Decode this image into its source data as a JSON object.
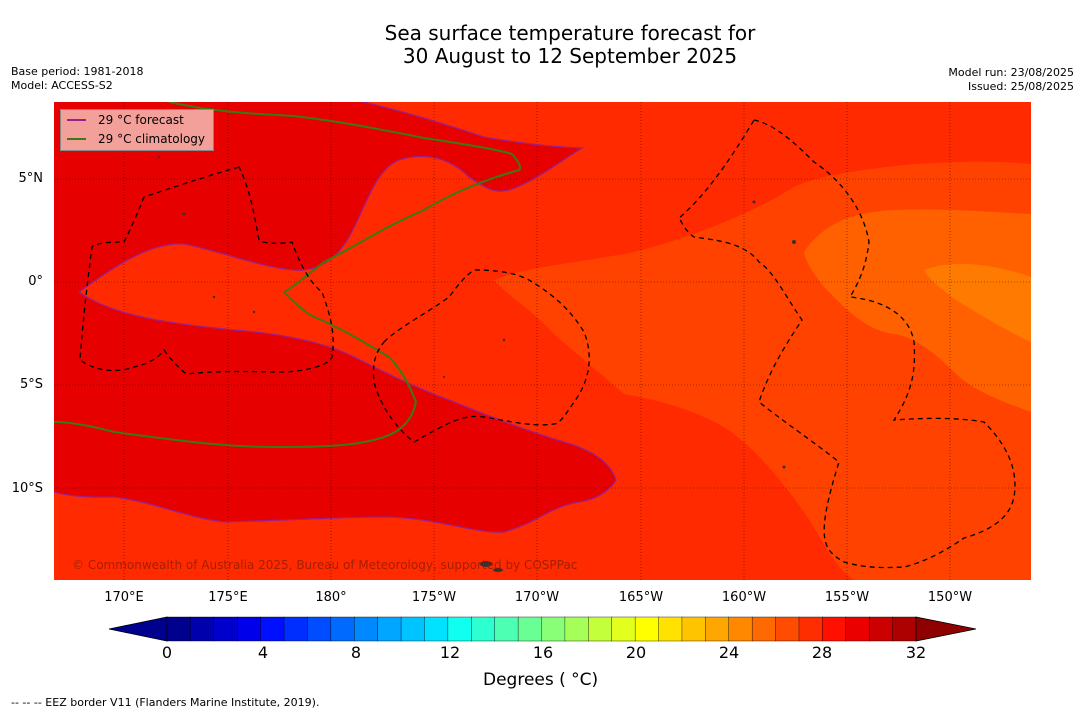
{
  "title": {
    "line1": "Sea surface temperature forecast for",
    "line2": "30 August to 12 September 2025"
  },
  "info_left": {
    "base_period": "Base period: 1981-2018",
    "model": "Model: ACCESS-S2"
  },
  "info_right": {
    "model_run": "Model run: 23/08/2025",
    "issued": "Issued: 25/08/2025"
  },
  "map": {
    "legend": [
      {
        "label": "29 °C  forecast",
        "color": "#9b1f8e"
      },
      {
        "label": "29 °C  climatology",
        "color": "#3a7a12"
      }
    ],
    "copyright": "© Commonwealth of Australia 2025, Bureau of Meteorology, supported by COSPPac",
    "lat_labels": [
      "5°N",
      "0°",
      "5°S",
      "10°S"
    ],
    "lon_labels": [
      "170°E",
      "175°E",
      "180°",
      "175°W",
      "170°W",
      "165°W",
      "160°W",
      "155°W",
      "150°W"
    ],
    "colors": {
      "sst_29_30": "#e60000",
      "sst_28_29": "#ff2a00",
      "sst_27_28": "#ff4200",
      "sst_26_27": "#ff6000",
      "sst_25_26": "#ff7a00",
      "eez_border": "#000000"
    }
  },
  "colorbar": {
    "title": "Degrees ( °C)",
    "ticks": [
      "0",
      "4",
      "8",
      "12",
      "16",
      "20",
      "24",
      "28",
      "32"
    ],
    "min": 0,
    "max": 32,
    "step": 1,
    "colors": [
      "#00008f",
      "#0000ad",
      "#0000cc",
      "#0000eb",
      "#0010ff",
      "#002eff",
      "#004cff",
      "#006aff",
      "#0088ff",
      "#00a6ff",
      "#00c4ff",
      "#00e2ff",
      "#10fff0",
      "#2effd1",
      "#4cffb3",
      "#6aff95",
      "#88ff77",
      "#a6ff59",
      "#c4ff3b",
      "#e2ff1d",
      "#ffff00",
      "#ffe200",
      "#ffc400",
      "#ffa600",
      "#ff8800",
      "#ff6a00",
      "#ff4c00",
      "#ff2e00",
      "#ff1000",
      "#eb0000",
      "#cc0000",
      "#ad0000",
      "#8f0000"
    ]
  },
  "footnote": "--  --  -- EEZ border V11 (Flanders Marine Institute, 2019)."
}
